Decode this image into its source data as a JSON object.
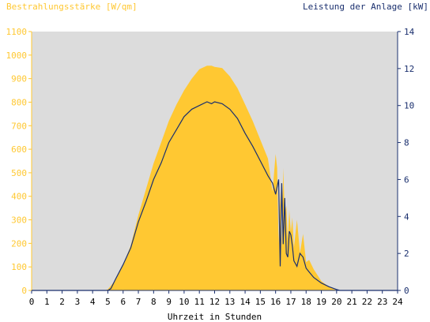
{
  "chart_data": {
    "type": "area",
    "left_axis_title": "Bestrahlungsstärke [W/qm]",
    "right_axis_title": "Leistung der Anlage [kW]",
    "xlabel": "Uhrzeit in Stunden",
    "xlim": [
      0,
      24
    ],
    "ylim_left": [
      0,
      1100
    ],
    "ylim_right": [
      0,
      14
    ],
    "x_ticks": [
      "0",
      "1",
      "2",
      "3",
      "4",
      "5",
      "6",
      "7",
      "8",
      "9",
      "10",
      "11",
      "12",
      "13",
      "14",
      "15",
      "16",
      "17",
      "18",
      "19",
      "20",
      "21",
      "22",
      "23",
      "24"
    ],
    "y_left_ticks": [
      "0",
      "100",
      "200",
      "300",
      "400",
      "500",
      "600",
      "700",
      "800",
      "900",
      "1000",
      "1100"
    ],
    "y_right_ticks": [
      "0",
      "2",
      "4",
      "6",
      "8",
      "10",
      "12",
      "14"
    ],
    "grid": false,
    "colors": {
      "irradiance": "#ffc832",
      "power": "#1a2f6e",
      "plot_bg": "#dcdcdc"
    },
    "series": [
      {
        "axis": "left",
        "x": [
          0,
          4.8,
          5.0,
          5.2,
          5.5,
          6.0,
          6.5,
          7.0,
          7.5,
          8.0,
          8.5,
          9.0,
          9.5,
          10.0,
          10.5,
          11.0,
          11.5,
          11.8,
          12.0,
          12.5,
          13.0,
          13.5,
          14.0,
          14.5,
          15.0,
          15.5,
          15.8,
          16.0,
          16.1,
          16.2,
          16.3,
          16.4,
          16.5,
          16.6,
          16.7,
          16.8,
          16.9,
          17.0,
          17.1,
          17.2,
          17.4,
          17.6,
          17.8,
          18.0,
          18.2,
          18.5,
          19.0,
          19.5,
          20.0,
          20.2,
          24
        ],
        "values": [
          0,
          0,
          5,
          20,
          45,
          110,
          190,
          320,
          430,
          540,
          630,
          720,
          790,
          850,
          900,
          940,
          955,
          955,
          950,
          945,
          910,
          860,
          790,
          720,
          640,
          560,
          420,
          580,
          520,
          200,
          420,
          180,
          520,
          330,
          360,
          220,
          340,
          250,
          310,
          180,
          300,
          160,
          240,
          120,
          130,
          90,
          40,
          15,
          0,
          0,
          0
        ]
      },
      {
        "axis": "right",
        "x": [
          0,
          5.0,
          5.2,
          5.5,
          6.0,
          6.5,
          7.0,
          7.5,
          8.0,
          8.5,
          9.0,
          9.5,
          10.0,
          10.5,
          11.0,
          11.5,
          11.8,
          12.0,
          12.5,
          13.0,
          13.5,
          14.0,
          14.5,
          15.0,
          15.5,
          15.8,
          16.0,
          16.2,
          16.3,
          16.4,
          16.5,
          16.6,
          16.7,
          16.8,
          16.9,
          17.0,
          17.1,
          17.2,
          17.4,
          17.6,
          17.8,
          18.0,
          18.2,
          18.5,
          19.0,
          19.5,
          20.0,
          20.2,
          24
        ],
        "values": [
          0,
          0,
          0.1,
          0.6,
          1.4,
          2.3,
          3.7,
          4.8,
          6.0,
          6.9,
          8.0,
          8.7,
          9.4,
          9.8,
          10.0,
          10.2,
          10.1,
          10.2,
          10.1,
          9.8,
          9.3,
          8.5,
          7.8,
          7.0,
          6.2,
          5.8,
          5.2,
          6.0,
          1.3,
          5.8,
          2.5,
          5.0,
          2.0,
          1.8,
          3.2,
          3.0,
          2.4,
          1.6,
          1.3,
          2.0,
          1.8,
          1.2,
          1.0,
          0.7,
          0.4,
          0.2,
          0.05,
          0,
          0
        ]
      }
    ]
  }
}
